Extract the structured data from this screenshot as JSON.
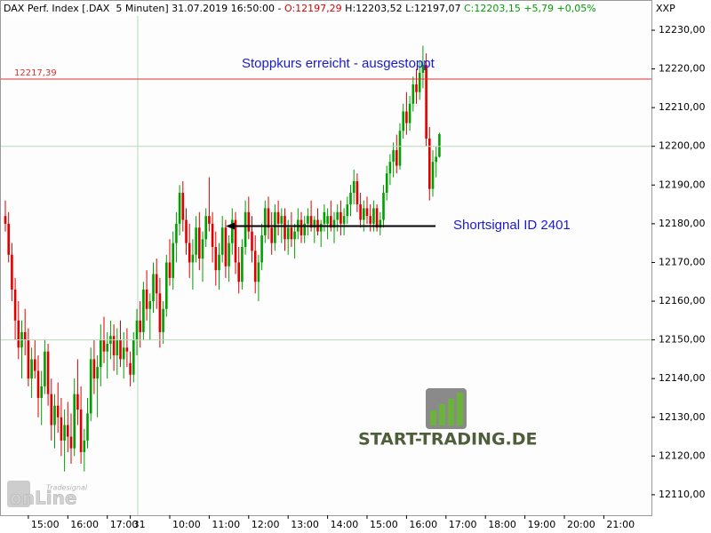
{
  "chart_data": {
    "type": "candlestick",
    "header": [
      {
        "text": "DAX Perf. Index [.DAX  5 Minuten] 31.07.2019 16:50:00 - ",
        "color": "#000000"
      },
      {
        "text": "O:12197,29",
        "color": "#e00000"
      },
      {
        "text": " H:12203,52 L:12197,07 ",
        "color": "#000000"
      },
      {
        "text": "C:12203,15 +5,79 +0,05%",
        "color": "#00a000"
      }
    ],
    "axis_title": "XXP",
    "up_color": "#00a000",
    "down_color": "#e00000",
    "ylim": [
      12104.7,
      12237.8
    ],
    "yticks": [
      {
        "value": 12110,
        "label": "12110,00"
      },
      {
        "value": 12120,
        "label": "12120,00"
      },
      {
        "value": 12130,
        "label": "12130,00"
      },
      {
        "value": 12140,
        "label": "12140,00"
      },
      {
        "value": 12150,
        "label": "12150,00"
      },
      {
        "value": 12160,
        "label": "12160,00"
      },
      {
        "value": 12170,
        "label": "12170,00"
      },
      {
        "value": 12180,
        "label": "12180,00"
      },
      {
        "value": 12190,
        "label": "12190,00"
      },
      {
        "value": 12200,
        "label": "12200,00"
      },
      {
        "value": 12210,
        "label": "12210,00"
      },
      {
        "value": 12220,
        "label": "12220,00"
      },
      {
        "value": 12230,
        "label": "12230,00"
      }
    ],
    "ygrid": [
      12150,
      12200
    ],
    "stop_level": {
      "value": 12217.39,
      "label": "12217,39",
      "color": "#e03030"
    },
    "signal_level": 12179.4,
    "annotations": {
      "stop": "Stoppkurs erreicht - ausgestoppt",
      "signal": "Shortsignal ID 2401"
    },
    "logos": {
      "tradesignal": "Tradesignal",
      "online": "onLine",
      "start_trading": "START-TRADING.DE"
    },
    "categories": [
      null,
      null,
      null,
      null,
      null,
      null,
      null,
      "15:00",
      null,
      null,
      null,
      null,
      null,
      null,
      null,
      null,
      null,
      null,
      null,
      "16:00",
      null,
      null,
      null,
      null,
      null,
      null,
      null,
      null,
      null,
      null,
      null,
      "17:00",
      null,
      null,
      null,
      null,
      null,
      null,
      "31",
      null,
      null,
      null,
      null,
      null,
      null,
      null,
      null,
      null,
      null,
      null,
      "10:00",
      null,
      null,
      null,
      null,
      null,
      null,
      null,
      null,
      null,
      null,
      null,
      "11:00",
      null,
      null,
      null,
      null,
      null,
      null,
      null,
      null,
      null,
      null,
      null,
      "12:00",
      null,
      null,
      null,
      null,
      null,
      null,
      null,
      null,
      null,
      null,
      null,
      "13:00",
      null,
      null,
      null,
      null,
      null,
      null,
      null,
      null,
      null,
      null,
      null,
      "14:00",
      null,
      null,
      null,
      null,
      null,
      null,
      null,
      null,
      null,
      null,
      null,
      "15:00",
      null,
      null,
      null,
      null,
      null,
      null,
      null,
      null,
      null,
      null,
      null,
      "16:00",
      null,
      null,
      null,
      null,
      null,
      null,
      null,
      null,
      null,
      null,
      null,
      "17:00",
      null,
      null,
      null,
      null,
      null,
      null,
      null,
      null,
      null,
      null,
      null,
      "18:00",
      null,
      null,
      null,
      null,
      null,
      null,
      null,
      null,
      null,
      null,
      null,
      "19:00",
      null,
      null,
      null,
      null,
      null,
      null,
      null,
      null,
      null,
      null,
      null,
      "20:00",
      null,
      null,
      null,
      null,
      null,
      null,
      null,
      null,
      null,
      null,
      null,
      "21:00"
    ],
    "open": [
      12182,
      12180,
      12172,
      12163,
      12155,
      12148,
      12152,
      12150,
      12140,
      12145,
      12142,
      12135,
      12138,
      12147,
      12136,
      12128,
      12133,
      12130,
      12124,
      12128,
      12125,
      12122,
      12136,
      12132,
      12121,
      12124,
      12131,
      12145,
      12140,
      12143,
      12150,
      12147,
      12149,
      12151,
      12146,
      12150,
      12145,
      12148,
      12144,
      12141,
      12150,
      12155,
      12152,
      12163,
      12158,
      12160,
      12167,
      12162,
      12152,
      12158,
      12170,
      12166,
      12175,
      12180,
      12188,
      12181,
      12175,
      12170,
      12172,
      12179,
      12171,
      12176,
      12182,
      12180,
      12174,
      12168,
      12172,
      12179,
      12169,
      12175,
      12181,
      12170,
      12165,
      12174,
      12183,
      12178,
      12173,
      12165,
      12170,
      12177,
      12184,
      12179,
      12175,
      12183,
      12180,
      12182,
      12176,
      12179,
      12176,
      12178,
      12181,
      12177,
      12180,
      12182,
      12179,
      12181,
      12178,
      12180,
      12180,
      12182,
      12179,
      12181,
      12183,
      12180,
      12182,
      12185,
      12188,
      12191,
      12185,
      12181,
      12184,
      12182,
      12180,
      12184,
      12179,
      12181,
      12188,
      12193,
      12196,
      12199,
      12195,
      12204,
      12209,
      12206,
      12211,
      12216,
      12214,
      12219,
      12221,
      12202,
      12189,
      12196,
      12197.29,
      null,
      null,
      null,
      null,
      null,
      null,
      null,
      null,
      null,
      null,
      null,
      null,
      null,
      null,
      null,
      null,
      null,
      null,
      null,
      null,
      null,
      null,
      null,
      null,
      null,
      null,
      null,
      null,
      null,
      null,
      null,
      null,
      null,
      null,
      null,
      null,
      null,
      null,
      null,
      null,
      null,
      null,
      null,
      null,
      null,
      null,
      null,
      null,
      null,
      null
    ],
    "high": [
      12186,
      12183,
      12175,
      12166,
      12160,
      12155,
      12158,
      12153,
      12148,
      12150,
      12146,
      12142,
      12150,
      12149,
      12140,
      12136,
      12139,
      12135,
      12132,
      12134,
      12131,
      12140,
      12145,
      12138,
      12127,
      12135,
      12148,
      12150,
      12146,
      12154,
      12156,
      12152,
      12155,
      12154,
      12153,
      12155,
      12152,
      12153,
      12147,
      12152,
      12158,
      12160,
      12165,
      12168,
      12162,
      12170,
      12171,
      12166,
      12160,
      12172,
      12176,
      12178,
      12183,
      12190,
      12191,
      12184,
      12180,
      12176,
      12182,
      12183,
      12178,
      12184,
      12192,
      12183,
      12178,
      12175,
      12182,
      12181,
      12177,
      12184,
      12183,
      12174,
      12176,
      12186,
      12187,
      12182,
      12177,
      12172,
      12180,
      12186,
      12187,
      12183,
      12185,
      12186,
      12184,
      12184,
      12181,
      12183,
      12180,
      12184,
      12183,
      12182,
      12184,
      12186,
      12182,
      12184,
      12181,
      12185,
      12184,
      12186,
      12183,
      12185,
      12186,
      12184,
      12187,
      12190,
      12194,
      12193,
      12188,
      12186,
      12187,
      12185,
      12186,
      12185,
      12183,
      12190,
      12195,
      12198,
      12201,
      12203,
      12206,
      12211,
      12214,
      12213,
      12218,
      12220,
      12222,
      12226,
      12224,
      12205,
      12199,
      12200,
      12203.52,
      null,
      null,
      null,
      null,
      null,
      null,
      null,
      null,
      null,
      null,
      null,
      null,
      null,
      null,
      null,
      null,
      null,
      null,
      null,
      null,
      null,
      null,
      null,
      null,
      null,
      null,
      null,
      null,
      null,
      null,
      null,
      null,
      null,
      null,
      null,
      null,
      null,
      null,
      null,
      null,
      null,
      null,
      null,
      null,
      null,
      null,
      null,
      null,
      null,
      null
    ],
    "low": [
      12178,
      12170,
      12160,
      12150,
      12145,
      12140,
      12146,
      12138,
      12135,
      12140,
      12130,
      12128,
      12136,
      12133,
      12124,
      12122,
      12126,
      12120,
      12116,
      12121,
      12118,
      12120,
      12128,
      12118,
      12116,
      12122,
      12129,
      12136,
      12130,
      12138,
      12144,
      12140,
      12145,
      12142,
      12141,
      12143,
      12140,
      12143,
      12138,
      12139,
      12146,
      12148,
      12150,
      12155,
      12150,
      12157,
      12158,
      12148,
      12149,
      12156,
      12164,
      12163,
      12170,
      12177,
      12178,
      12172,
      12166,
      12163,
      12170,
      12168,
      12165,
      12174,
      12178,
      12170,
      12164,
      12163,
      12170,
      12166,
      12165,
      12172,
      12167,
      12162,
      12163,
      12172,
      12176,
      12170,
      12162,
      12160,
      12168,
      12175,
      12176,
      12172,
      12173,
      12177,
      12175,
      12173,
      12172,
      12174,
      12171,
      12176,
      12175,
      12175,
      12177,
      12178,
      12175,
      12177,
      12174,
      12178,
      12176,
      12178,
      12175,
      12178,
      12177,
      12177,
      12180,
      12182,
      12185,
      12183,
      12179,
      12178,
      12180,
      12178,
      12178,
      12178,
      12177,
      12179,
      12186,
      12190,
      12192,
      12193,
      12194,
      12202,
      12203,
      12204,
      12209,
      12211,
      12212,
      12215,
      12200,
      12186,
      12187,
      12192,
      12197.07,
      null,
      null,
      null,
      null,
      null,
      null,
      null,
      null,
      null,
      null,
      null,
      null,
      null,
      null,
      null,
      null,
      null,
      null,
      null,
      null,
      null,
      null,
      null,
      null,
      null,
      null,
      null,
      null,
      null,
      null,
      null,
      null,
      null,
      null,
      null,
      null,
      null,
      null,
      null,
      null,
      null,
      null,
      null,
      null,
      null,
      null,
      null,
      null,
      null,
      null
    ],
    "close": [
      12180,
      12172,
      12163,
      12155,
      12148,
      12152,
      12150,
      12140,
      12145,
      12142,
      12135,
      12138,
      12147,
      12136,
      12128,
      12133,
      12130,
      12124,
      12128,
      12125,
      12122,
      12136,
      12132,
      12121,
      12124,
      12131,
      12145,
      12140,
      12143,
      12150,
      12147,
      12149,
      12151,
      12146,
      12150,
      12145,
      12148,
      12147,
      12141,
      12150,
      12155,
      12152,
      12163,
      12158,
      12160,
      12167,
      12162,
      12152,
      12158,
      12170,
      12166,
      12175,
      12180,
      12188,
      12181,
      12175,
      12170,
      12172,
      12179,
      12171,
      12176,
      12182,
      12180,
      12174,
      12168,
      12172,
      12179,
      12169,
      12175,
      12181,
      12170,
      12165,
      12174,
      12183,
      12178,
      12173,
      12165,
      12170,
      12177,
      12184,
      12179,
      12175,
      12183,
      12180,
      12182,
      12176,
      12179,
      12176,
      12178,
      12181,
      12177,
      12180,
      12182,
      12179,
      12181,
      12178,
      12180,
      12183,
      12182,
      12179,
      12181,
      12183,
      12180,
      12182,
      12185,
      12188,
      12191,
      12185,
      12181,
      12184,
      12182,
      12180,
      12184,
      12179,
      12181,
      12188,
      12193,
      12196,
      12199,
      12195,
      12204,
      12209,
      12206,
      12211,
      12216,
      12214,
      12219,
      12221,
      12202,
      12189,
      12196,
      12197.29,
      12203.15,
      null,
      null,
      null,
      null,
      null,
      null,
      null,
      null,
      null,
      null,
      null,
      null,
      null,
      null,
      null,
      null,
      null,
      null,
      null,
      null,
      null,
      null,
      null,
      null,
      null,
      null,
      null,
      null,
      null,
      null,
      null,
      null,
      null,
      null,
      null,
      null,
      null,
      null,
      null,
      null,
      null,
      null,
      null,
      null,
      null,
      null,
      null,
      null,
      null,
      null
    ]
  }
}
